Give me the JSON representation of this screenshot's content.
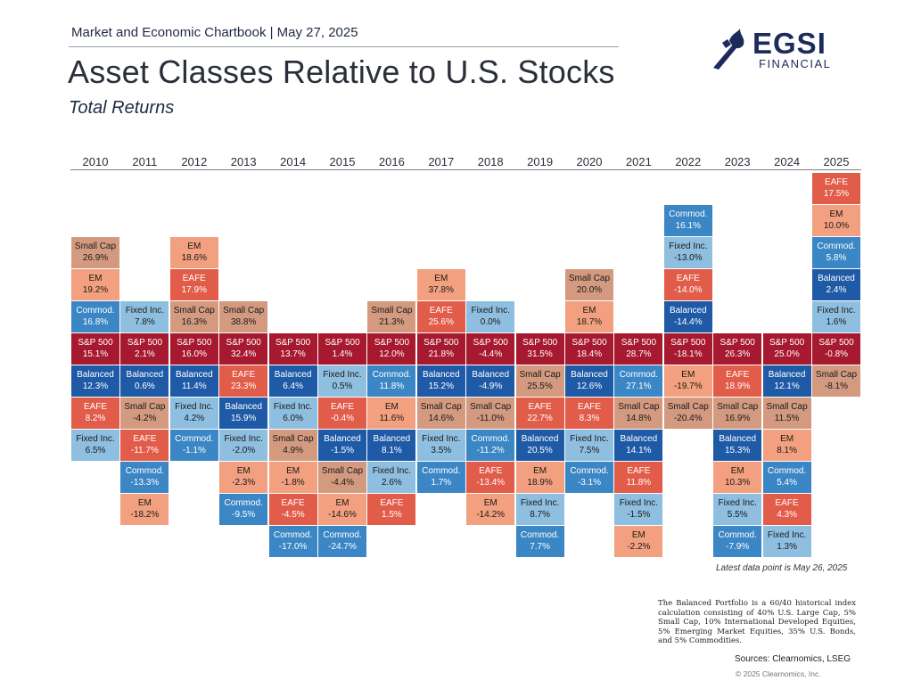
{
  "header": {
    "kicker": "Market and Economic Chartbook | May 27, 2025",
    "title": "Asset Classes Relative to U.S. Stocks",
    "subtitle": "Total Returns"
  },
  "logo": {
    "word": "EGSI",
    "sub": "FINANCIAL"
  },
  "colors": {
    "S&P 500": "#a6192e",
    "Balanced": "#1f5aa6",
    "Fixed Inc.": "#8fbfe0",
    "Commod.": "#3b86c4",
    "Small Cap": "#d39a80",
    "EM": "#f2a07f",
    "EAFE": "#e25c4a"
  },
  "chart_data": {
    "type": "table",
    "title": "Asset Classes Relative to U.S. Stocks",
    "subtitle": "Total Returns",
    "years": [
      "2010",
      "2011",
      "2012",
      "2013",
      "2014",
      "2015",
      "2016",
      "2017",
      "2018",
      "2019",
      "2020",
      "2021",
      "2022",
      "2023",
      "2024",
      "2025"
    ],
    "columns": [
      {
        "year": "2010",
        "above": [
          {
            "name": "Small Cap",
            "value": "26.9%"
          },
          {
            "name": "EM",
            "value": "19.2%"
          },
          {
            "name": "Commod.",
            "value": "16.8%"
          }
        ],
        "sp500": "15.1%",
        "below": [
          {
            "name": "Balanced",
            "value": "12.3%"
          },
          {
            "name": "EAFE",
            "value": "8.2%"
          },
          {
            "name": "Fixed Inc.",
            "value": "6.5%"
          }
        ]
      },
      {
        "year": "2011",
        "above": [
          {
            "name": "Fixed Inc.",
            "value": "7.8%"
          }
        ],
        "sp500": "2.1%",
        "below": [
          {
            "name": "Balanced",
            "value": "0.6%"
          },
          {
            "name": "Small Cap",
            "value": "-4.2%"
          },
          {
            "name": "EAFE",
            "value": "-11.7%"
          },
          {
            "name": "Commod.",
            "value": "-13.3%"
          },
          {
            "name": "EM",
            "value": "-18.2%"
          }
        ]
      },
      {
        "year": "2012",
        "above": [
          {
            "name": "EM",
            "value": "18.6%"
          },
          {
            "name": "EAFE",
            "value": "17.9%"
          },
          {
            "name": "Small Cap",
            "value": "16.3%"
          }
        ],
        "sp500": "16.0%",
        "below": [
          {
            "name": "Balanced",
            "value": "11.4%"
          },
          {
            "name": "Fixed Inc.",
            "value": "4.2%"
          },
          {
            "name": "Commod.",
            "value": "-1.1%"
          }
        ]
      },
      {
        "year": "2013",
        "above": [
          {
            "name": "Small Cap",
            "value": "38.8%"
          }
        ],
        "sp500": "32.4%",
        "below": [
          {
            "name": "EAFE",
            "value": "23.3%"
          },
          {
            "name": "Balanced",
            "value": "15.9%"
          },
          {
            "name": "Fixed Inc.",
            "value": "-2.0%"
          },
          {
            "name": "EM",
            "value": "-2.3%"
          },
          {
            "name": "Commod.",
            "value": "-9.5%"
          }
        ]
      },
      {
        "year": "2014",
        "above": [],
        "sp500": "13.7%",
        "below": [
          {
            "name": "Balanced",
            "value": "6.4%"
          },
          {
            "name": "Fixed Inc.",
            "value": "6.0%"
          },
          {
            "name": "Small Cap",
            "value": "4.9%"
          },
          {
            "name": "EM",
            "value": "-1.8%"
          },
          {
            "name": "EAFE",
            "value": "-4.5%"
          },
          {
            "name": "Commod.",
            "value": "-17.0%"
          }
        ]
      },
      {
        "year": "2015",
        "above": [],
        "sp500": "1.4%",
        "below": [
          {
            "name": "Fixed Inc.",
            "value": "0.5%"
          },
          {
            "name": "EAFE",
            "value": "-0.4%"
          },
          {
            "name": "Balanced",
            "value": "-1.5%"
          },
          {
            "name": "Small Cap",
            "value": "-4.4%"
          },
          {
            "name": "EM",
            "value": "-14.6%"
          },
          {
            "name": "Commod.",
            "value": "-24.7%"
          }
        ]
      },
      {
        "year": "2016",
        "above": [
          {
            "name": "Small Cap",
            "value": "21.3%"
          }
        ],
        "sp500": "12.0%",
        "below": [
          {
            "name": "Commod.",
            "value": "11.8%"
          },
          {
            "name": "EM",
            "value": "11.6%"
          },
          {
            "name": "Balanced",
            "value": "8.1%"
          },
          {
            "name": "Fixed Inc.",
            "value": "2.6%"
          },
          {
            "name": "EAFE",
            "value": "1.5%"
          }
        ]
      },
      {
        "year": "2017",
        "above": [
          {
            "name": "EM",
            "value": "37.8%"
          },
          {
            "name": "EAFE",
            "value": "25.6%"
          }
        ],
        "sp500": "21.8%",
        "below": [
          {
            "name": "Balanced",
            "value": "15.2%"
          },
          {
            "name": "Small Cap",
            "value": "14.6%"
          },
          {
            "name": "Fixed Inc.",
            "value": "3.5%"
          },
          {
            "name": "Commod.",
            "value": "1.7%"
          }
        ]
      },
      {
        "year": "2018",
        "above": [
          {
            "name": "Fixed Inc.",
            "value": "0.0%"
          }
        ],
        "sp500": "-4.4%",
        "below": [
          {
            "name": "Balanced",
            "value": "-4.9%"
          },
          {
            "name": "Small Cap",
            "value": "-11.0%"
          },
          {
            "name": "Commod.",
            "value": "-11.2%"
          },
          {
            "name": "EAFE",
            "value": "-13.4%"
          },
          {
            "name": "EM",
            "value": "-14.2%"
          }
        ]
      },
      {
        "year": "2019",
        "above": [],
        "sp500": "31.5%",
        "below": [
          {
            "name": "Small Cap",
            "value": "25.5%"
          },
          {
            "name": "EAFE",
            "value": "22.7%"
          },
          {
            "name": "Balanced",
            "value": "20.5%"
          },
          {
            "name": "EM",
            "value": "18.9%"
          },
          {
            "name": "Fixed Inc.",
            "value": "8.7%"
          },
          {
            "name": "Commod.",
            "value": "7.7%"
          }
        ]
      },
      {
        "year": "2020",
        "above": [
          {
            "name": "Small Cap",
            "value": "20.0%"
          },
          {
            "name": "EM",
            "value": "18.7%"
          }
        ],
        "sp500": "18.4%",
        "below": [
          {
            "name": "Balanced",
            "value": "12.6%"
          },
          {
            "name": "EAFE",
            "value": "8.3%"
          },
          {
            "name": "Fixed Inc.",
            "value": "7.5%"
          },
          {
            "name": "Commod.",
            "value": "-3.1%"
          }
        ]
      },
      {
        "year": "2021",
        "above": [],
        "sp500": "28.7%",
        "below": [
          {
            "name": "Commod.",
            "value": "27.1%"
          },
          {
            "name": "Small Cap",
            "value": "14.8%"
          },
          {
            "name": "Balanced",
            "value": "14.1%"
          },
          {
            "name": "EAFE",
            "value": "11.8%"
          },
          {
            "name": "Fixed Inc.",
            "value": "-1.5%"
          },
          {
            "name": "EM",
            "value": "-2.2%"
          }
        ]
      },
      {
        "year": "2022",
        "above": [
          {
            "name": "Commod.",
            "value": "16.1%"
          },
          {
            "name": "Fixed Inc.",
            "value": "-13.0%"
          },
          {
            "name": "EAFE",
            "value": "-14.0%"
          },
          {
            "name": "Balanced",
            "value": "-14.4%"
          }
        ],
        "sp500": "-18.1%",
        "below": [
          {
            "name": "EM",
            "value": "-19.7%"
          },
          {
            "name": "Small Cap",
            "value": "-20.4%"
          }
        ]
      },
      {
        "year": "2023",
        "above": [],
        "sp500": "26.3%",
        "below": [
          {
            "name": "EAFE",
            "value": "18.9%"
          },
          {
            "name": "Small Cap",
            "value": "16.9%"
          },
          {
            "name": "Balanced",
            "value": "15.3%"
          },
          {
            "name": "EM",
            "value": "10.3%"
          },
          {
            "name": "Fixed Inc.",
            "value": "5.5%"
          },
          {
            "name": "Commod.",
            "value": "-7.9%"
          }
        ]
      },
      {
        "year": "2024",
        "above": [],
        "sp500": "25.0%",
        "below": [
          {
            "name": "Balanced",
            "value": "12.1%"
          },
          {
            "name": "Small Cap",
            "value": "11.5%"
          },
          {
            "name": "EM",
            "value": "8.1%"
          },
          {
            "name": "Commod.",
            "value": "5.4%"
          },
          {
            "name": "EAFE",
            "value": "4.3%"
          },
          {
            "name": "Fixed Inc.",
            "value": "1.3%"
          }
        ]
      },
      {
        "year": "2025",
        "above": [
          {
            "name": "EAFE",
            "value": "17.5%"
          },
          {
            "name": "EM",
            "value": "10.0%"
          },
          {
            "name": "Commod.",
            "value": "5.8%"
          },
          {
            "name": "Balanced",
            "value": "2.4%"
          },
          {
            "name": "Fixed Inc.",
            "value": "1.6%"
          }
        ],
        "sp500": "-0.8%",
        "below": [
          {
            "name": "Small Cap",
            "value": "-8.1%"
          }
        ]
      }
    ]
  },
  "footer": {
    "latest": "Latest data point is May 26, 2025",
    "note": "The Balanced Portfolio is a 60/40 historical index calculation consisting of 40% U.S. Large Cap, 5% Small Cap, 10% International Developed Equities, 5% Emerging Market Equities, 35% U.S. Bonds, and 5% Commodities.",
    "sources": "Sources: Clearnomics, LSEG",
    "copyright": "© 2025 Clearnomics, Inc."
  }
}
